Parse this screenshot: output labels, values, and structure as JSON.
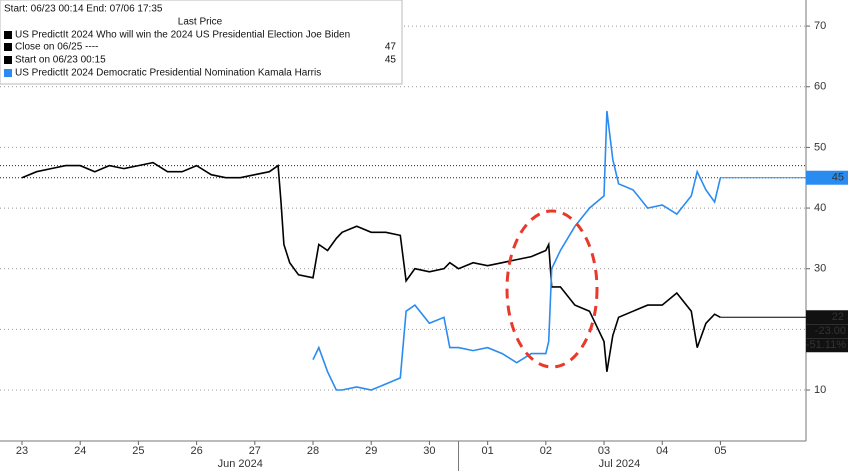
{
  "chart_data": {
    "type": "line",
    "legend_header": "Start: 06/23 00:14 End: 07/06 17:35",
    "legend_subheader": "Last Price",
    "reference_lines": [
      {
        "label": "Close on 06/25 ----",
        "value": 47
      },
      {
        "label": "Start on 06/23 00:15",
        "value": 45
      }
    ],
    "x": [
      0,
      0.25,
      0.5,
      0.75,
      1.0,
      1.25,
      1.5,
      1.75,
      2.0,
      2.25,
      2.5,
      2.75,
      3.0,
      3.25,
      3.5,
      3.75,
      4.0,
      4.25,
      4.4,
      4.45,
      4.5,
      4.6,
      4.75,
      5.0,
      5.1,
      5.25,
      5.4,
      5.5,
      5.75,
      6.0,
      6.25,
      6.5,
      6.6,
      6.75,
      7.0,
      7.25,
      7.35,
      7.5,
      7.75,
      8.0,
      8.25,
      8.5,
      8.75,
      9.0,
      9.05,
      9.1,
      9.25,
      9.5,
      9.75,
      10.0,
      10.05,
      10.15,
      10.25,
      10.5,
      10.75,
      11.0,
      11.25,
      11.5,
      11.6,
      11.75,
      11.9,
      12.0
    ],
    "series": [
      {
        "name": "US PredictIt 2024 Who will win the 2024 US Presidential Election Joe Biden",
        "color": "#000000",
        "values": [
          45,
          46,
          46.5,
          47,
          47,
          46,
          47,
          46.5,
          47,
          47.5,
          46,
          46,
          47,
          45.5,
          45,
          45,
          45.5,
          46,
          47,
          41,
          34,
          31,
          29,
          28.5,
          34,
          33,
          35,
          36,
          37,
          36,
          36,
          35.5,
          28,
          30,
          29.5,
          30,
          31,
          30,
          31,
          30.5,
          31,
          31.5,
          32,
          33,
          34,
          27,
          27,
          24,
          23,
          18,
          13,
          19,
          22,
          23,
          24,
          24,
          26,
          23,
          17,
          21,
          22.5,
          22
        ]
      },
      {
        "name": "US PredictIt 2024 Democratic Presidential Nomination Kamala Harris",
        "color": "#2a8cf0",
        "values": [
          null,
          null,
          null,
          null,
          null,
          null,
          null,
          null,
          null,
          null,
          null,
          null,
          null,
          null,
          null,
          null,
          null,
          null,
          null,
          null,
          null,
          null,
          null,
          15,
          17,
          13,
          10,
          10,
          10.5,
          10,
          11,
          12,
          23,
          24,
          21,
          22,
          17,
          17,
          16.5,
          17,
          16,
          14.5,
          16,
          16,
          18,
          30,
          33,
          37,
          40,
          42,
          56,
          48,
          44,
          43,
          40,
          40.5,
          39,
          42,
          46,
          43,
          41,
          45
        ]
      }
    ],
    "change_labels": [
      "-23.00",
      "-51.11%"
    ],
    "xlim": [
      -0.378,
      13.47
    ],
    "xticks": [
      {
        "value": 0,
        "label": "23"
      },
      {
        "value": 1,
        "label": "24"
      },
      {
        "value": 2,
        "label": "25"
      },
      {
        "value": 3,
        "label": "26"
      },
      {
        "value": 4,
        "label": "27"
      },
      {
        "value": 5,
        "label": "28"
      },
      {
        "value": 6,
        "label": "29"
      },
      {
        "value": 7,
        "label": "30"
      },
      {
        "value": 8,
        "label": "01"
      },
      {
        "value": 9,
        "label": "02"
      },
      {
        "value": 10,
        "label": "03"
      },
      {
        "value": 11,
        "label": "04"
      },
      {
        "value": 12,
        "label": "05"
      }
    ],
    "month_labels": [
      "Jun 2024",
      "Jul 2024"
    ],
    "ylim": [
      1.6,
      74.3
    ],
    "yticks": [
      10,
      20,
      30,
      40,
      50,
      60,
      70
    ],
    "grid": true
  }
}
